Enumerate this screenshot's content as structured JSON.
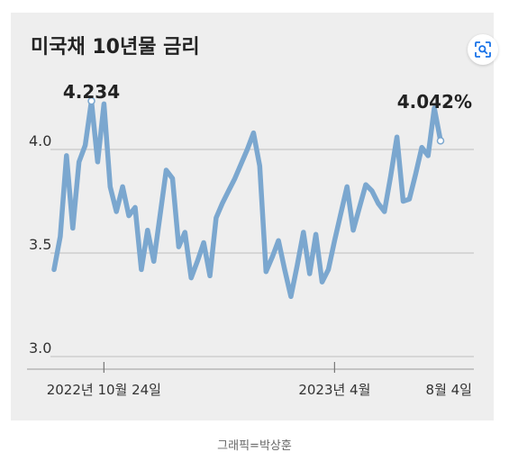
{
  "chart_data": {
    "type": "line",
    "title": "미국채 10년물 금리",
    "ylim": [
      3.0,
      4.2
    ],
    "y_ticks": [
      {
        "value": 3.0,
        "label": "3.0"
      },
      {
        "value": 3.5,
        "label": "3.5"
      },
      {
        "value": 4.0,
        "label": "4.0"
      }
    ],
    "x_ticks": [
      {
        "index": 8,
        "label": "2022년 10월 24일"
      },
      {
        "index": 45,
        "label": "2023년 4월"
      },
      {
        "index": 73,
        "label": "8월 4일"
      }
    ],
    "gridlines": "horizontal",
    "legend": "none",
    "line_color": "#7ba7cf",
    "series": [
      {
        "values": [
          3.42,
          3.58,
          3.97,
          3.62,
          3.94,
          4.02,
          4.234,
          3.94,
          4.22,
          3.82,
          3.7,
          3.82,
          3.68,
          3.72,
          3.42,
          3.61,
          3.46,
          3.68,
          3.9,
          3.86,
          3.53,
          3.6,
          3.38,
          3.46,
          3.55,
          3.39,
          3.67,
          3.74,
          3.8,
          3.86,
          3.93,
          4.0,
          4.08,
          3.92,
          3.41,
          3.48,
          3.56,
          3.42,
          3.29,
          3.44,
          3.6,
          3.4,
          3.59,
          3.36,
          3.42,
          3.56,
          3.69,
          3.82,
          3.61,
          3.72,
          3.83,
          3.8,
          3.74,
          3.7,
          3.87,
          4.06,
          3.75,
          3.76,
          3.88,
          4.01,
          3.97,
          4.2,
          4.042
        ]
      }
    ],
    "annotations": [
      {
        "label": "4.234",
        "index": 6
      },
      {
        "label": "4.042%",
        "index": 62
      }
    ]
  },
  "icons": {
    "lens": "lens-search-icon"
  },
  "credit": "그래픽=박상훈"
}
